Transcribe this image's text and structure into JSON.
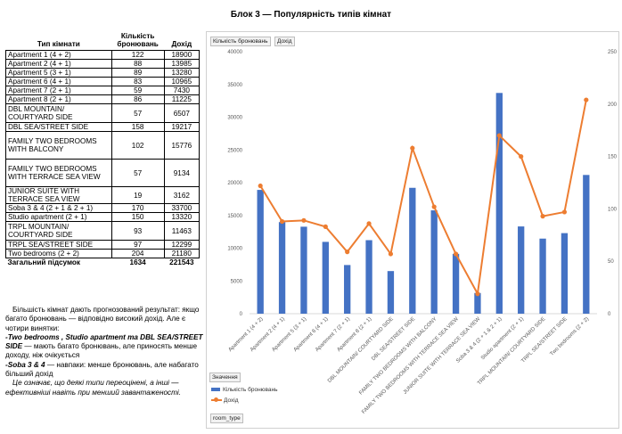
{
  "heading": "Блок 3 — Популярність типів кімнат",
  "table": {
    "headers": {
      "room_type": "Тип кімнати",
      "bookings": "Кількість бронювань",
      "revenue": "Дохід"
    },
    "rows": [
      {
        "name": "Apartment 1 (4 + 2)",
        "bookings": "122",
        "revenue": "18900"
      },
      {
        "name": "Apartment 2 (4 + 1)",
        "bookings": "88",
        "revenue": "13985"
      },
      {
        "name": "Apartment 5 (3 + 1)",
        "bookings": "89",
        "revenue": "13280"
      },
      {
        "name": "Apartment 6 (4 + 1)",
        "bookings": "83",
        "revenue": "10965"
      },
      {
        "name": "Apartment 7 (2 + 1)",
        "bookings": "59",
        "revenue": "7430"
      },
      {
        "name": "Apartment 8 (2 + 1)",
        "bookings": "86",
        "revenue": "11225"
      },
      {
        "name": "DBL MOUNTAIN/ COURTYARD SIDE",
        "bookings": "57",
        "revenue": "6507"
      },
      {
        "name": "DBL SEA/STREET SIDE",
        "bookings": "158",
        "revenue": "19217"
      },
      {
        "name": "FAMILY TWO BEDROOMS WITH BALCONY",
        "bookings": "102",
        "revenue": "15776"
      },
      {
        "name": "FAMILY TWO BEDROOMS WITH TERRACE SEA VIEW",
        "bookings": "57",
        "revenue": "9134"
      },
      {
        "name": "JUNIOR SUITE WITH TERRACE SEA VIEW",
        "bookings": "19",
        "revenue": "3162"
      },
      {
        "name": "Soba 3 & 4 (2 + 1 & 2 + 1)",
        "bookings": "170",
        "revenue": "33700"
      },
      {
        "name": "Studio apartment (2 + 1)",
        "bookings": "150",
        "revenue": "13320"
      },
      {
        "name": "TRPL MOUNTAIN/ COURTYARD SIDE",
        "bookings": "93",
        "revenue": "11463"
      },
      {
        "name": "TRPL SEA/STREET SIDE",
        "bookings": "97",
        "revenue": "12299"
      },
      {
        "name": "Two bedrooms (2 + 2)",
        "bookings": "204",
        "revenue": "21180"
      }
    ],
    "total": {
      "label": "Загальний підсумок",
      "bookings": "1634",
      "revenue": "221543"
    }
  },
  "conclusion": {
    "p1": "Більшість кімнат дають прогнозований результат: якщо багато бронювань — відповідно високий дохід. Але є чотири винятки:",
    "item1_bold": "-Two bedrooms , Studio apartment та DBL SEA/STREET SIDE",
    "item1_rest": " — мають багато бронювань, але приносять менше доходу, ніж очікується",
    "item2_bold": "-Soba 3 & 4",
    "item2_rest": " — навпаки: менше бронювань, але набагато більший дохід",
    "p3": "Це означає, що деякі типи переоцінені, а інші — ефективніші навіть при менший завантаженості."
  },
  "chart_ui": {
    "field_bookings": "Кількість бронювань",
    "field_revenue": "Дохід",
    "values_label": "Значення",
    "legend_bookings": "Кількість бронювань",
    "legend_revenue": "Дохід",
    "axis_field": "room_type"
  },
  "chart_data": {
    "type": "bar",
    "categories": [
      "Apartment 1 (4 + 2)",
      "Apartment 2 (4 + 1)",
      "Apartment 5 (3 + 1)",
      "Apartment 6 (4 + 1)",
      "Apartment 7 (2 + 1)",
      "Apartment 8 (2 + 1)",
      "DBL MOUNTAIN/ COURTYARD SIDE",
      "DBL SEA/STREET SIDE",
      "FAMILY TWO BEDROOMS WITH BALCONY",
      "FAMILY TWO BEDROOMS WITH TERRACE SEA VIEW",
      "JUNIOR SUITE WITH TERRACE SEA VIEW",
      "Soba 3 & 4 (2 + 1 & 2 + 1)",
      "Studio apartment (2 + 1)",
      "TRPL MOUNTAIN/ COURTYARD SIDE",
      "TRPL SEA/STREET SIDE",
      "Two bedrooms (2 + 2)"
    ],
    "series": [
      {
        "name": "Дохід",
        "kind": "bar",
        "axis": "left",
        "color": "#4472C4",
        "values": [
          18900,
          13985,
          13280,
          10965,
          7430,
          11225,
          6507,
          19217,
          15776,
          9134,
          3162,
          33700,
          13320,
          11463,
          12299,
          21180
        ]
      },
      {
        "name": "Кількість бронювань",
        "kind": "line",
        "axis": "right",
        "color": "#ED7D31",
        "values": [
          122,
          88,
          89,
          83,
          59,
          86,
          57,
          158,
          102,
          57,
          19,
          170,
          150,
          93,
          97,
          204
        ]
      }
    ],
    "left_ticks": [
      0,
      5000,
      10000,
      15000,
      20000,
      25000,
      30000,
      35000,
      40000
    ],
    "right_ticks": [
      0,
      50,
      100,
      150,
      200,
      250
    ],
    "ylim_left": [
      0,
      40000
    ],
    "ylim_right": [
      0,
      250
    ],
    "grid": false,
    "legend": "bottom-left"
  }
}
